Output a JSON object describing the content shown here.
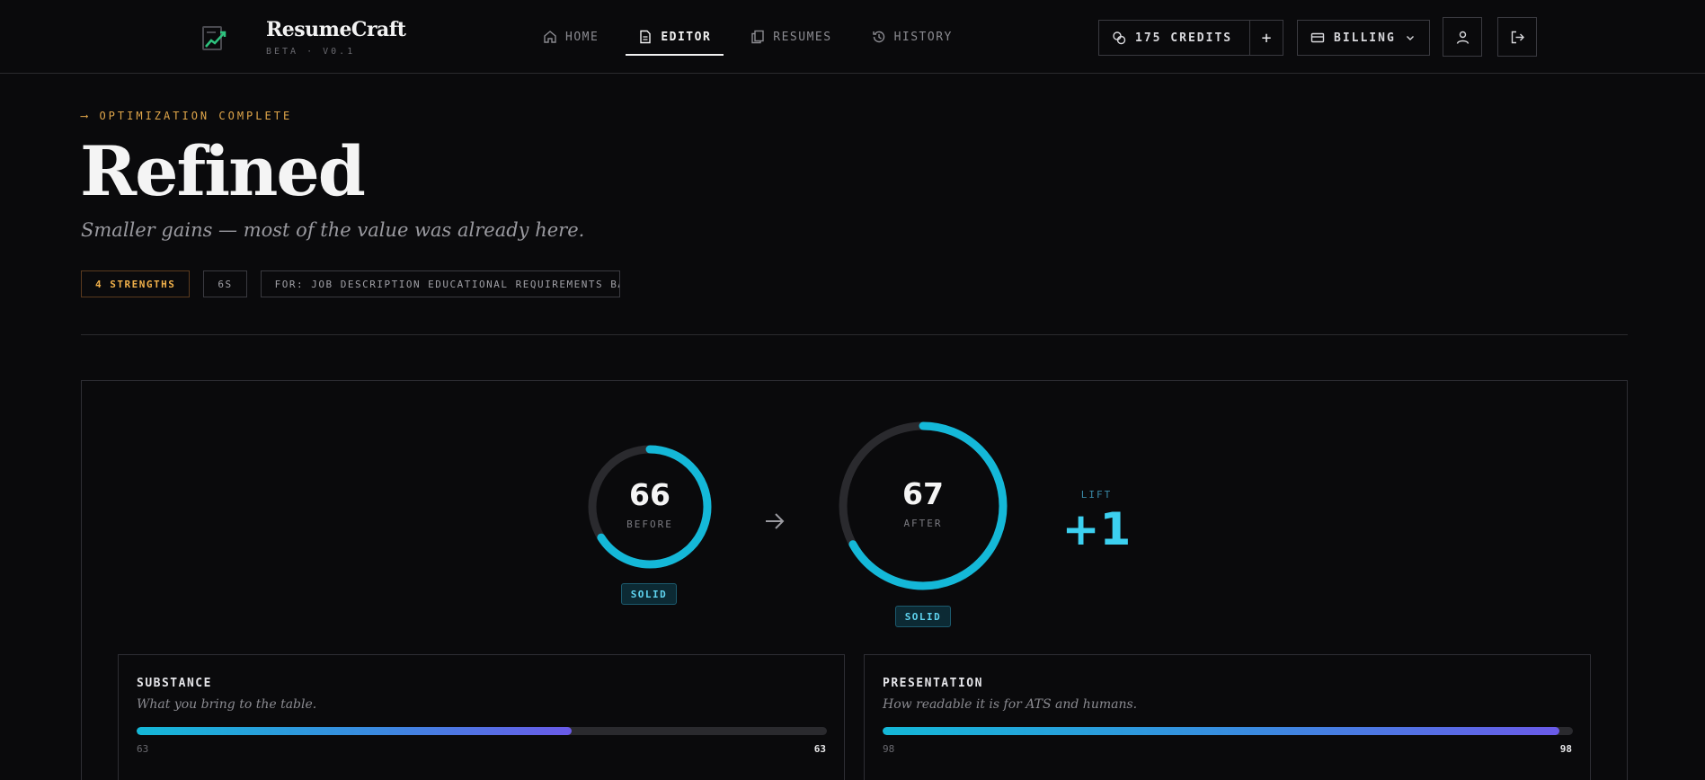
{
  "brand": {
    "name": "ResumeCraft",
    "subtitle": "BETA · V0.1",
    "logo_icon": "chart-document-icon"
  },
  "nav": {
    "items": [
      {
        "label": "HOME",
        "icon": "home-icon",
        "active": false
      },
      {
        "label": "EDITOR",
        "icon": "document-icon",
        "active": true
      },
      {
        "label": "RESUMES",
        "icon": "copy-icon",
        "active": false
      },
      {
        "label": "HISTORY",
        "icon": "history-icon",
        "active": false
      }
    ]
  },
  "account": {
    "credits_label": "175 CREDITS",
    "add_label": "+",
    "billing_label": "BILLING"
  },
  "hero": {
    "eyebrow": "⟶ OPTIMIZATION COMPLETE",
    "title": "Refined",
    "subtitle": "Smaller gains — most of the value was already here.",
    "chips": {
      "strengths": "4 STRENGTHS",
      "duration": "6S",
      "job": "FOR: JOB DESCRIPTION EDUCATIONAL REQUIREMENTS BA"
    }
  },
  "scores": {
    "before": {
      "value": 66,
      "value_text": "66",
      "label": "BEFORE",
      "badge": "SOLID"
    },
    "after": {
      "value": 67,
      "value_text": "67",
      "label": "AFTER",
      "badge": "SOLID"
    },
    "lift": {
      "label": "LIFT",
      "value": "+1"
    },
    "ring_color": "#14b8d8",
    "track_color": "#2a2a2e"
  },
  "metrics": [
    {
      "title": "SUBSTANCE",
      "desc": "What you bring to the table.",
      "before": "63",
      "after": "63",
      "percent": 63
    },
    {
      "title": "PRESENTATION",
      "desc": "How readable it is for ATS and humans.",
      "before": "98",
      "after": "98",
      "percent": 98
    }
  ]
}
